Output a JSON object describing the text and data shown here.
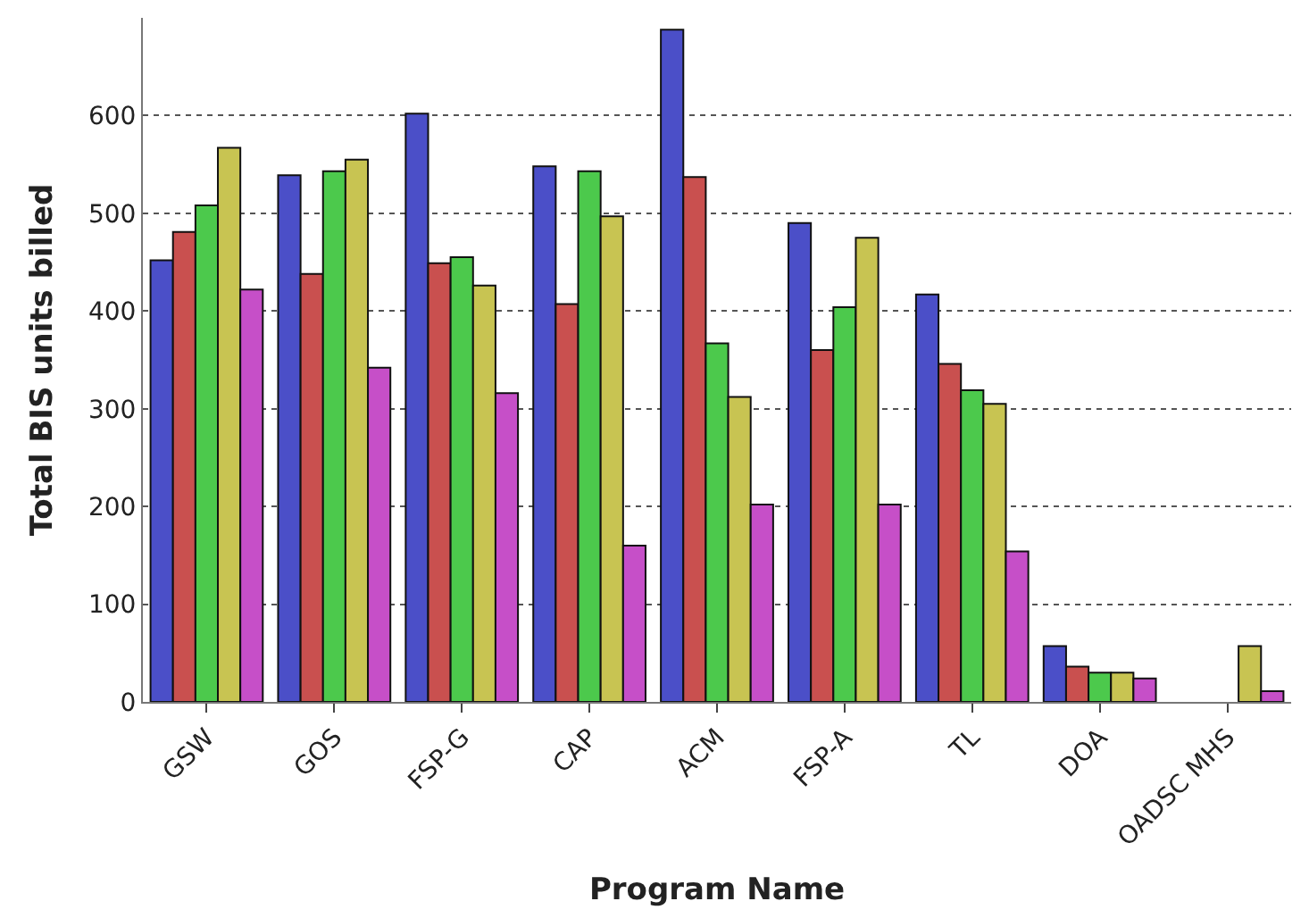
{
  "chart_data": {
    "type": "bar",
    "xlabel": "Program Name",
    "ylabel": "Total BIS units billed",
    "categories": [
      "GSW",
      "GOS",
      "FSP-G",
      "CAP",
      "ACM",
      "FSP-A",
      "TL",
      "DOA",
      "OADSC MHS"
    ],
    "series": [
      {
        "color": "#4b4fc8",
        "values": [
          452,
          539,
          602,
          548,
          688,
          490,
          417,
          57,
          null
        ]
      },
      {
        "color": "#c9504f",
        "values": [
          481,
          438,
          449,
          407,
          537,
          360,
          346,
          36,
          null
        ]
      },
      {
        "color": "#4cc94c",
        "values": [
          508,
          543,
          455,
          543,
          367,
          404,
          319,
          30,
          null
        ]
      },
      {
        "color": "#c8c452",
        "values": [
          567,
          555,
          426,
          497,
          312,
          475,
          305,
          30,
          57
        ]
      },
      {
        "color": "#c64fc8",
        "values": [
          422,
          342,
          316,
          160,
          202,
          202,
          154,
          24,
          11
        ]
      }
    ],
    "ylim": [
      0,
      700
    ],
    "yticks": [
      0,
      100,
      200,
      300,
      400,
      500,
      600
    ],
    "grid": "y"
  }
}
